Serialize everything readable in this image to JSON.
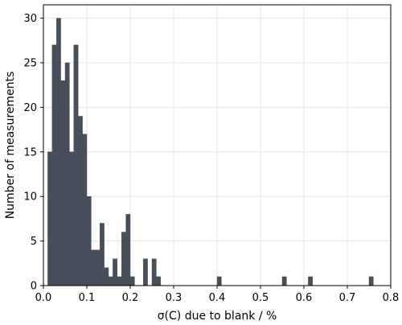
{
  "chart_data": {
    "type": "bar",
    "subtype": "histogram",
    "bin_width": 0.01,
    "bin_starts": [
      0.01,
      0.02,
      0.03,
      0.04,
      0.05,
      0.06,
      0.07,
      0.08,
      0.09,
      0.1,
      0.11,
      0.12,
      0.13,
      0.14,
      0.15,
      0.16,
      0.17,
      0.18,
      0.19,
      0.2,
      0.21,
      0.22,
      0.23,
      0.24,
      0.25,
      0.26,
      0.4,
      0.55,
      0.61,
      0.75
    ],
    "values": [
      15,
      27,
      30,
      23,
      25,
      15,
      27,
      19,
      17,
      10,
      4,
      4,
      7,
      2,
      1,
      3,
      1,
      6,
      8,
      1,
      0,
      0,
      3,
      0,
      3,
      1,
      1,
      1,
      1,
      1
    ],
    "bar_color": "#474f5a",
    "xlabel": "σ(C) due to blank / %",
    "ylabel": "Number of measurements",
    "xlim": [
      0.0,
      0.8
    ],
    "ylim": [
      0,
      31.5
    ],
    "xticks": [
      0.0,
      0.1,
      0.2,
      0.3,
      0.4,
      0.5,
      0.6,
      0.7,
      0.8
    ],
    "xtick_labels": [
      "0.0",
      "0.1",
      "0.2",
      "0.3",
      "0.4",
      "0.5",
      "0.6",
      "0.7",
      "0.8"
    ],
    "yticks": [
      0,
      5,
      10,
      15,
      20,
      25,
      30
    ],
    "ytick_labels": [
      "0",
      "5",
      "10",
      "15",
      "20",
      "25",
      "30"
    ],
    "grid": true,
    "grid_color": "#e6e6e6",
    "legend": "none"
  }
}
